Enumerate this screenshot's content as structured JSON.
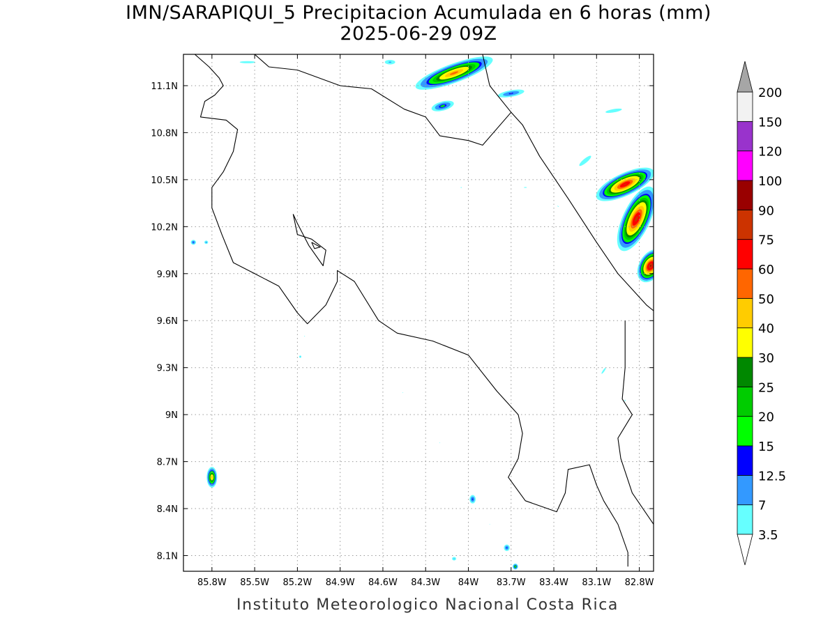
{
  "title": {
    "line1": "IMN/SARAPIQUI_5 Precipitacion Acumulada en 6 horas (mm)",
    "line2": "2025-06-29 09Z"
  },
  "footer": "Instituto Meteorologico Nacional Costa Rica",
  "chart_data": {
    "type": "heatmap",
    "variable": "Precipitacion Acumulada en 6 horas (mm)",
    "valid_time": "2025-06-29 09Z",
    "lon_range": [
      -86.0,
      -82.7
    ],
    "lat_range": [
      8.0,
      11.3
    ],
    "x_ticks": [
      {
        "value": -85.8,
        "label": "85.8W"
      },
      {
        "value": -85.5,
        "label": "85.5W"
      },
      {
        "value": -85.2,
        "label": "85.2W"
      },
      {
        "value": -84.9,
        "label": "84.9W"
      },
      {
        "value": -84.6,
        "label": "84.6W"
      },
      {
        "value": -84.3,
        "label": "84.3W"
      },
      {
        "value": -84.0,
        "label": "84W"
      },
      {
        "value": -83.7,
        "label": "83.7W"
      },
      {
        "value": -83.4,
        "label": "83.4W"
      },
      {
        "value": -83.1,
        "label": "83.1W"
      },
      {
        "value": -82.8,
        "label": "82.8W"
      }
    ],
    "y_ticks": [
      {
        "value": 8.1,
        "label": "8.1N"
      },
      {
        "value": 8.4,
        "label": "8.4N"
      },
      {
        "value": 8.7,
        "label": "8.7N"
      },
      {
        "value": 9.0,
        "label": "9N"
      },
      {
        "value": 9.3,
        "label": "9.3N"
      },
      {
        "value": 9.6,
        "label": "9.6N"
      },
      {
        "value": 9.9,
        "label": "9.9N"
      },
      {
        "value": 10.2,
        "label": "10.2N"
      },
      {
        "value": 10.5,
        "label": "10.5N"
      },
      {
        "value": 10.8,
        "label": "10.8N"
      },
      {
        "value": 11.1,
        "label": "11.1N"
      }
    ],
    "grid": true,
    "colorbar": {
      "levels": [
        "3.5",
        "7",
        "12.5",
        "15",
        "20",
        "25",
        "30",
        "40",
        "50",
        "60",
        "75",
        "90",
        "100",
        "120",
        "150",
        "200"
      ],
      "colors": [
        "#66ffff",
        "#3399ff",
        "#0000ff",
        "#00ff00",
        "#00cc00",
        "#008800",
        "#ffff00",
        "#ffcc00",
        "#ff6600",
        "#ff0000",
        "#cc3300",
        "#990000",
        "#ff00ff",
        "#9933cc",
        "#f2f2f2"
      ],
      "below_color": "#ffffff",
      "above_color": "#a6a6a6"
    },
    "precip_features": [
      {
        "lon": -84.1,
        "lat": 11.18,
        "rx": 0.38,
        "ry": 0.08,
        "angle": 20,
        "max": 55
      },
      {
        "lon": -84.55,
        "lat": 11.25,
        "rx": 0.1,
        "ry": 0.04,
        "angle": 0,
        "max": 8
      },
      {
        "lon": -85.55,
        "lat": 11.25,
        "rx": 0.28,
        "ry": 0.035,
        "angle": 0,
        "max": 5
      },
      {
        "lon": -84.18,
        "lat": 10.97,
        "rx": 0.14,
        "ry": 0.05,
        "angle": 15,
        "max": 18
      },
      {
        "lon": -83.7,
        "lat": 11.05,
        "rx": 0.18,
        "ry": 0.04,
        "angle": 10,
        "max": 14
      },
      {
        "lon": -82.98,
        "lat": 10.94,
        "rx": 0.22,
        "ry": 0.04,
        "angle": 10,
        "max": 6
      },
      {
        "lon": -82.9,
        "lat": 10.47,
        "rx": 0.28,
        "ry": 0.09,
        "angle": 25,
        "max": 75
      },
      {
        "lon": -82.82,
        "lat": 10.25,
        "rx": 0.12,
        "ry": 0.28,
        "angle": -25,
        "max": 80
      },
      {
        "lon": -82.72,
        "lat": 9.95,
        "rx": 0.1,
        "ry": 0.14,
        "angle": -30,
        "max": 90
      },
      {
        "lon": -83.18,
        "lat": 10.62,
        "rx": 0.2,
        "ry": 0.05,
        "angle": 40,
        "max": 6
      },
      {
        "lon": -85.8,
        "lat": 8.6,
        "rx": 0.05,
        "ry": 0.09,
        "angle": 0,
        "max": 45
      },
      {
        "lon": -85.93,
        "lat": 10.1,
        "rx": 0.035,
        "ry": 0.03,
        "angle": 0,
        "max": 14
      },
      {
        "lon": -85.84,
        "lat": 10.1,
        "rx": 0.03,
        "ry": 0.025,
        "angle": 0,
        "max": 10
      },
      {
        "lon": -83.97,
        "lat": 8.46,
        "rx": 0.04,
        "ry": 0.05,
        "angle": 0,
        "max": 15
      },
      {
        "lon": -83.73,
        "lat": 8.15,
        "rx": 0.04,
        "ry": 0.04,
        "angle": 0,
        "max": 14
      },
      {
        "lon": -83.67,
        "lat": 8.03,
        "rx": 0.03,
        "ry": 0.03,
        "angle": 0,
        "max": 25
      },
      {
        "lon": -84.1,
        "lat": 8.08,
        "rx": 0.04,
        "ry": 0.03,
        "angle": 0,
        "max": 8
      },
      {
        "lon": -83.05,
        "lat": 9.28,
        "rx": 0.03,
        "ry": 0.12,
        "angle": -35,
        "max": 5
      },
      {
        "lon": -82.9,
        "lat": 9.09,
        "rx": 0.03,
        "ry": 0.06,
        "angle": -35,
        "max": 4
      },
      {
        "lon": -85.18,
        "lat": 9.37,
        "rx": 0.02,
        "ry": 0.02,
        "angle": 0,
        "max": 8
      },
      {
        "lon": -85.15,
        "lat": 9.5,
        "rx": 0.03,
        "ry": 0.02,
        "angle": 0,
        "max": 4
      },
      {
        "lon": -84.46,
        "lat": 9.14,
        "rx": 0.025,
        "ry": 0.02,
        "angle": 0,
        "max": 4
      },
      {
        "lon": -83.6,
        "lat": 10.45,
        "rx": 0.1,
        "ry": 0.025,
        "angle": 0,
        "max": 4
      },
      {
        "lon": -84.05,
        "lat": 10.45,
        "rx": 0.05,
        "ry": 0.02,
        "angle": 0,
        "max": 4
      },
      {
        "lon": -83.37,
        "lat": 10.33,
        "rx": 0.06,
        "ry": 0.02,
        "angle": -30,
        "max": 4
      },
      {
        "lon": -84.2,
        "lat": 8.82,
        "rx": 0.02,
        "ry": 0.02,
        "angle": 0,
        "max": 4
      },
      {
        "lon": -83.85,
        "lat": 8.3,
        "rx": 0.02,
        "ry": 0.02,
        "angle": 0,
        "max": 4
      }
    ],
    "coastlines": [
      [
        [
          -85.92,
          11.3
        ],
        [
          -85.82,
          11.22
        ],
        [
          -85.75,
          11.15
        ],
        [
          -85.72,
          11.1
        ],
        [
          -85.78,
          11.04
        ],
        [
          -85.85,
          11.0
        ],
        [
          -85.88,
          10.9
        ],
        [
          -85.7,
          10.88
        ],
        [
          -85.62,
          10.82
        ],
        [
          -85.65,
          10.68
        ],
        [
          -85.72,
          10.55
        ],
        [
          -85.8,
          10.45
        ],
        [
          -85.8,
          10.32
        ],
        [
          -85.73,
          10.15
        ],
        [
          -85.65,
          9.97
        ],
        [
          -85.5,
          9.9
        ],
        [
          -85.33,
          9.82
        ],
        [
          -85.2,
          9.65
        ],
        [
          -85.13,
          9.58
        ],
        [
          -85.0,
          9.7
        ],
        [
          -84.92,
          9.85
        ],
        [
          -84.92,
          9.92
        ],
        [
          -84.8,
          9.85
        ],
        [
          -84.63,
          9.6
        ],
        [
          -84.5,
          9.52
        ],
        [
          -84.25,
          9.47
        ],
        [
          -84.0,
          9.38
        ],
        [
          -83.8,
          9.15
        ],
        [
          -83.65,
          9.0
        ],
        [
          -83.62,
          8.88
        ],
        [
          -83.65,
          8.72
        ],
        [
          -83.72,
          8.6
        ],
        [
          -83.6,
          8.45
        ],
        [
          -83.38,
          8.38
        ],
        [
          -83.32,
          8.5
        ],
        [
          -83.3,
          8.65
        ],
        [
          -83.15,
          8.68
        ],
        [
          -83.1,
          8.55
        ],
        [
          -83.05,
          8.45
        ],
        [
          -82.95,
          8.3
        ],
        [
          -82.88,
          8.12
        ],
        [
          -82.88,
          8.03
        ]
      ],
      [
        [
          -85.23,
          10.28
        ],
        [
          -85.2,
          10.15
        ],
        [
          -85.1,
          10.12
        ],
        [
          -85.0,
          10.05
        ],
        [
          -85.02,
          9.95
        ],
        [
          -85.12,
          10.08
        ],
        [
          -85.2,
          10.22
        ],
        [
          -85.23,
          10.28
        ]
      ],
      [
        [
          -85.1,
          10.1
        ],
        [
          -85.08,
          10.06
        ],
        [
          -85.04,
          10.07
        ],
        [
          -85.1,
          10.1
        ]
      ],
      [
        [
          -85.5,
          11.3
        ],
        [
          -85.4,
          11.22
        ],
        [
          -85.2,
          11.2
        ],
        [
          -84.9,
          11.1
        ],
        [
          -84.68,
          11.08
        ],
        [
          -84.45,
          10.95
        ],
        [
          -84.3,
          10.9
        ],
        [
          -84.2,
          10.78
        ],
        [
          -84.0,
          10.75
        ],
        [
          -83.9,
          10.72
        ],
        [
          -83.7,
          10.93
        ]
      ],
      [
        [
          -83.9,
          11.3
        ],
        [
          -83.85,
          11.1
        ],
        [
          -83.7,
          10.93
        ],
        [
          -83.62,
          10.85
        ],
        [
          -83.5,
          10.65
        ],
        [
          -83.3,
          10.38
        ],
        [
          -83.1,
          10.1
        ],
        [
          -82.95,
          9.9
        ],
        [
          -82.75,
          9.7
        ],
        [
          -82.56,
          9.56
        ]
      ],
      [
        [
          -82.9,
          9.6
        ],
        [
          -82.9,
          9.3
        ],
        [
          -82.92,
          9.1
        ],
        [
          -82.85,
          9.0
        ],
        [
          -82.95,
          8.85
        ],
        [
          -82.93,
          8.72
        ],
        [
          -82.85,
          8.5
        ],
        [
          -82.7,
          8.3
        ],
        [
          -82.6,
          8.27
        ]
      ]
    ]
  }
}
